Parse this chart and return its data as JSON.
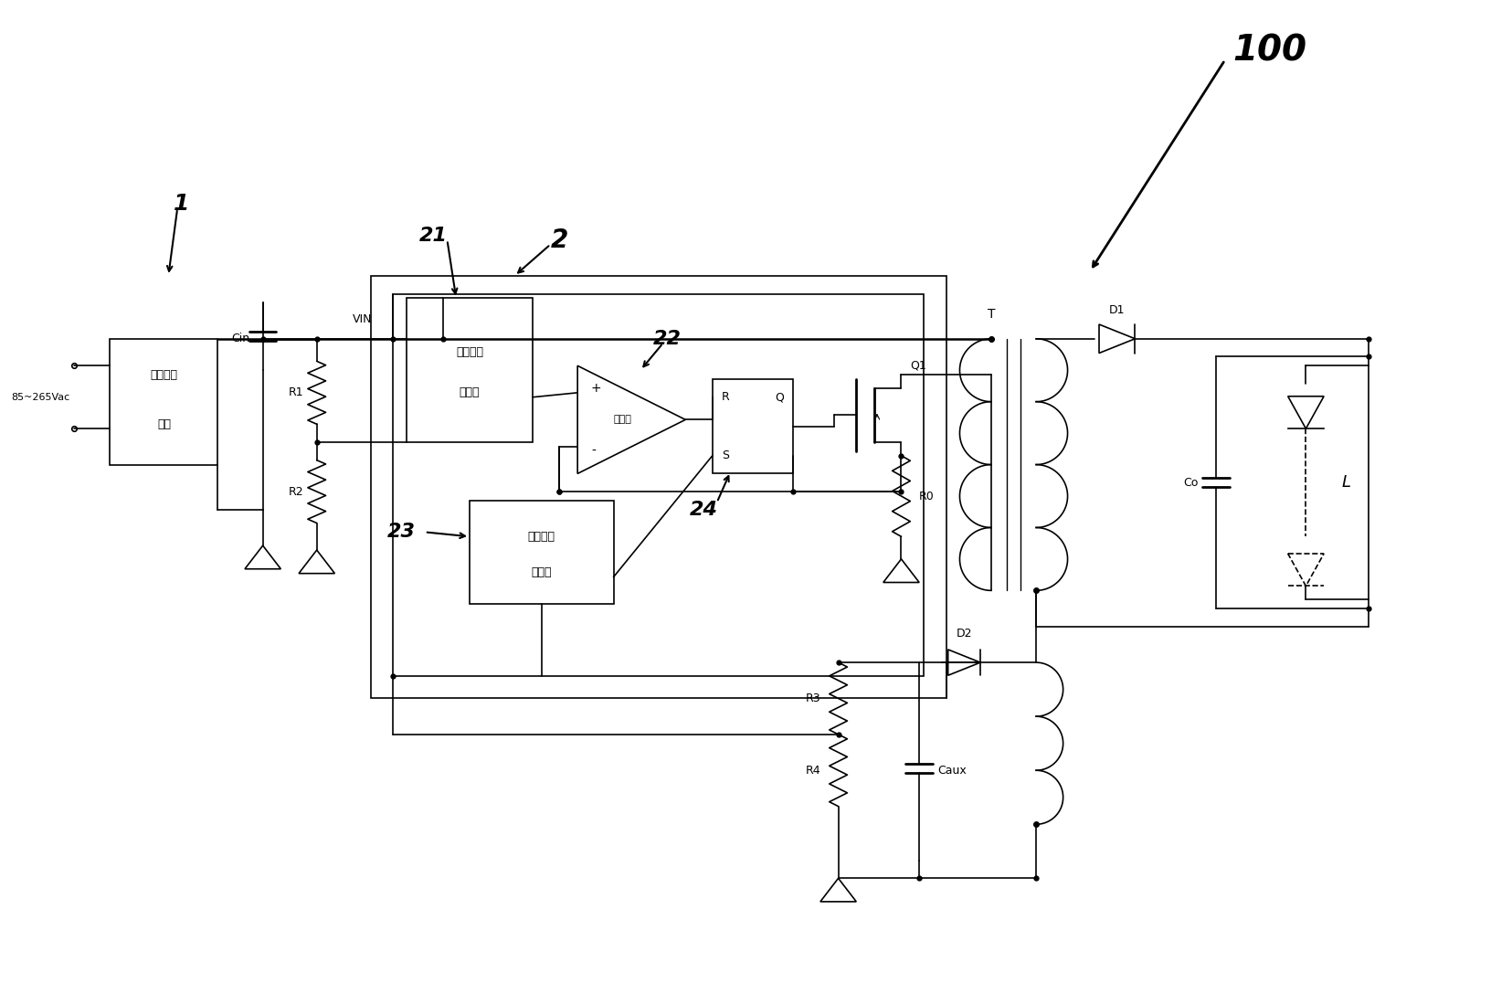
{
  "bg_color": "#ffffff",
  "line_color": "#000000",
  "figsize": [
    16.56,
    10.88
  ],
  "dpi": 100,
  "labels": {
    "label_100": "100",
    "label_1": "1",
    "label_2": "2",
    "label_21": "21",
    "label_22": "22",
    "label_23": "23",
    "label_24": "24",
    "ac_input": "85~265Vac",
    "bridge_line1": "桥式整流",
    "bridge_line2": "模块",
    "auto_gain_line1": "自动增益",
    "auto_gain_line2": "控制器",
    "comparator": "比较器",
    "clock_line1": "时钟信号",
    "clock_line2": "发生器",
    "VIN": "VIN",
    "Cin": "Cin",
    "R1": "R1",
    "R2": "R2",
    "R3": "R3",
    "R4": "R4",
    "R0": "R0",
    "Q1": "Q1",
    "D1": "D1",
    "D2": "D2",
    "Co": "Co",
    "L": "L",
    "T": "T",
    "Caux": "Caux",
    "plus": "+",
    "minus": "-",
    "R_latch": "R",
    "Q_latch": "Q",
    "S_latch": "S"
  }
}
